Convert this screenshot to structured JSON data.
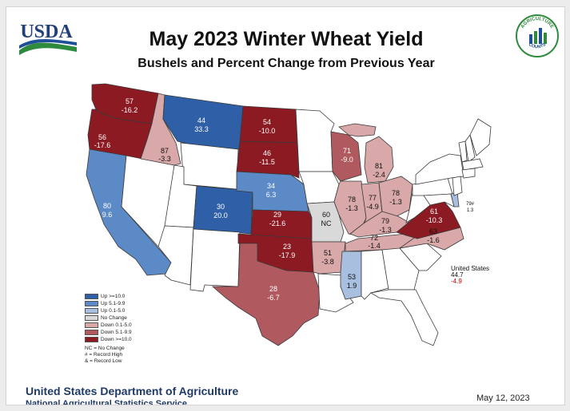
{
  "header": {
    "agency_logo_text": "USDA",
    "title": "May 2023 Winter Wheat Yield",
    "subtitle": "Bushels and Percent Change from Previous Year",
    "counts_logo_top_text": "AGRICULTURE",
    "counts_logo_bottom_text": "COUNTS"
  },
  "colors": {
    "up_gt_10": "#2f5fa7",
    "up_5_10": "#5b8ac6",
    "up_0_5": "#a8bfdf",
    "no_change": "#d9d9d9",
    "down_0_5": "#d9a8a9",
    "down_5_10": "#b05a60",
    "down_gt_10": "#8b1a22",
    "empty_state": "#ffffff"
  },
  "legend": {
    "items": [
      {
        "label": "Up >=10.0",
        "color": "#2f5fa7"
      },
      {
        "label": "Up 5.1-9.9",
        "color": "#5b8ac6"
      },
      {
        "label": "Up 0.1-5.0",
        "color": "#a8bfdf"
      },
      {
        "label": "No Change",
        "color": "#d9d9d9"
      },
      {
        "label": "Down 0.1-5.0",
        "color": "#d9a8a9"
      },
      {
        "label": "Down 5.1-9.9",
        "color": "#b05a60"
      },
      {
        "label": "Down >=10.0",
        "color": "#8b1a22"
      }
    ],
    "notes": [
      "NC = No Change",
      "# = Record High",
      "& = Record Low"
    ]
  },
  "states": {
    "WA": {
      "yield": "57",
      "change": "-16.2"
    },
    "OR": {
      "yield": "56",
      "change": "-17.6"
    },
    "ID": {
      "yield": "87",
      "change": "-3.3"
    },
    "MT": {
      "yield": "44",
      "change": "33.3"
    },
    "ND": {
      "yield": "54",
      "change": "-10.0"
    },
    "SD": {
      "yield": "46",
      "change": "-11.5"
    },
    "NE": {
      "yield": "34",
      "change": "6.3"
    },
    "CA": {
      "yield": "80",
      "change": "9.6"
    },
    "CO": {
      "yield": "30",
      "change": "20.0"
    },
    "KS": {
      "yield": "29",
      "change": "-21.6"
    },
    "OK": {
      "yield": "23",
      "change": "-17.9"
    },
    "TX": {
      "yield": "28",
      "change": "-6.7"
    },
    "MO": {
      "yield": "60",
      "change": "NC"
    },
    "AR": {
      "yield": "51",
      "change": "-3.8"
    },
    "MS": {
      "yield": "53",
      "change": "1.9"
    },
    "WI": {
      "yield": "71",
      "change": "-9.0"
    },
    "MI": {
      "yield": "81",
      "change": "-2.4"
    },
    "IL": {
      "yield": "78",
      "change": "-1.3"
    },
    "IN": {
      "yield": "77",
      "change": "-4.9"
    },
    "OH": {
      "yield": "78",
      "change": "-1.3"
    },
    "KY": {
      "yield": "79",
      "change": "-1.3"
    },
    "TN": {
      "yield": "72",
      "change": "-1.4"
    },
    "NC": {
      "yield": "63",
      "change": "-1.6"
    },
    "VA": {
      "yield": "61",
      "change": "-10.3"
    },
    "DE": {
      "yield": "79#",
      "change": "1.3"
    }
  },
  "united_states": {
    "label": "United States",
    "yield": "44.7",
    "change": "-4.9"
  },
  "footer": {
    "organization": "United States Department of Agriculture",
    "service": "National Agricultural Statistics Service",
    "date": "May 12, 2023"
  }
}
